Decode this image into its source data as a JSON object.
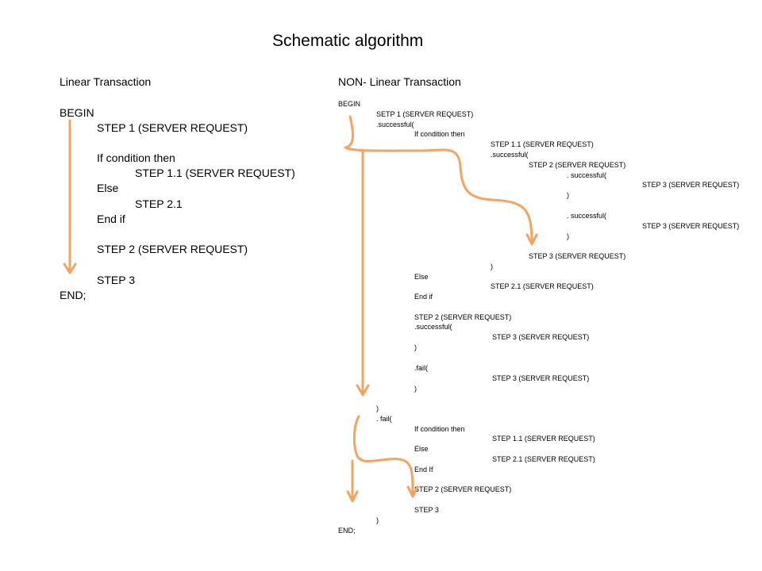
{
  "title": "Schematic algorithm",
  "linear": {
    "heading": "Linear Transaction",
    "lines": [
      "BEGIN",
      "STEP 1 (SERVER REQUEST)",
      "If condition  then",
      "STEP 1.1 (SERVER REQUEST)",
      "Else",
      "STEP 2.1",
      "End if",
      "STEP  2 (SERVER REQUEST)",
      "STEP 3",
      "END;"
    ]
  },
  "nonlinear": {
    "heading": "NON- Linear Transaction",
    "lines": [
      "BEGIN",
      "SETP 1  (SERVER REQUEST)",
      ".successful(",
      "If condition then",
      "STEP 1.1 (SERVER REQUEST)",
      ".successful(",
      "STEP 2 (SERVER REQUEST)",
      ". successful(",
      "STEP 3 (SERVER REQUEST)",
      ")",
      ". successful(",
      "STEP 3 (SERVER REQUEST)",
      ")",
      "STEP 3 (SERVER REQUEST)",
      ")",
      "Else",
      "STEP 2.1 (SERVER REQUEST)",
      "End if",
      "STEP 2 (SERVER REQUEST)",
      ".successful(",
      "STEP 3 (SERVER REQUEST)",
      ")",
      ".fail(",
      "STEP 3 (SERVER REQUEST)",
      ")",
      ")",
      ". fail(",
      "If condition then",
      "STEP 1.1 (SERVER REQUEST)",
      "Else",
      "STEP 2.1 (SERVER REQUEST)",
      "End If",
      "STEP 2 (SERVER REQUEST)",
      "STEP 3",
      ")",
      "END;"
    ]
  },
  "colors": {
    "arrow": "#f4a460",
    "text": "#000000"
  }
}
